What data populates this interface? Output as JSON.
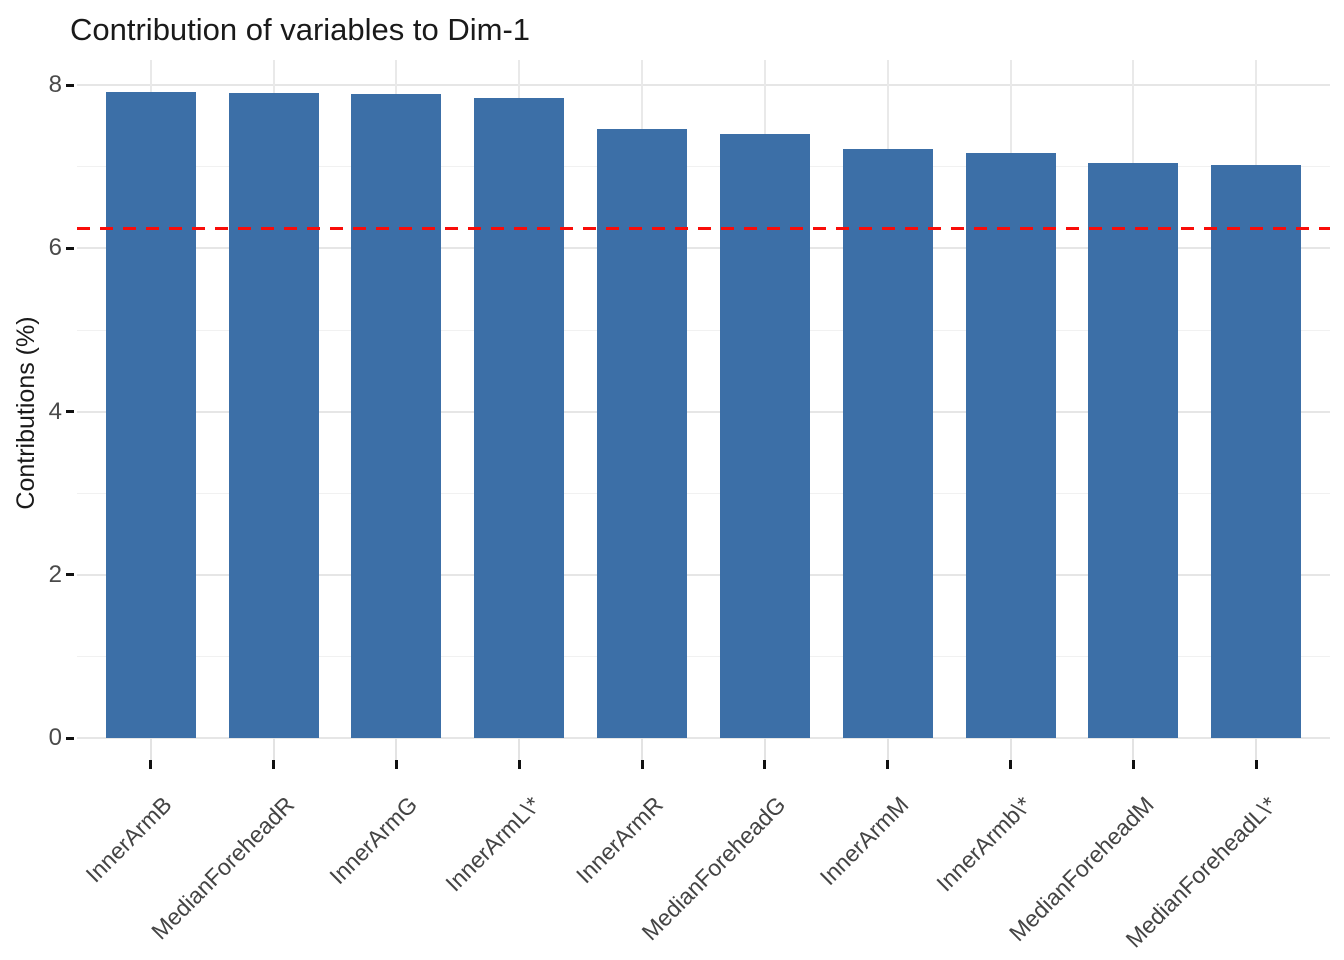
{
  "figure": {
    "title": "Contribution of variables to Dim-1"
  },
  "chart_data": {
    "type": "bar",
    "title": "Contribution of variables to Dim-1",
    "xlabel": "",
    "ylabel": "Contributions (%)",
    "categories": [
      "InnerArmB",
      "MedianForeheadR",
      "InnerArmG",
      "InnerArmL\\*",
      "InnerArmR",
      "MedianForeheadG",
      "InnerArmM",
      "InnerArmb\\*",
      "MedianForeheadM",
      "MedianForeheadL\\*"
    ],
    "values": [
      7.92,
      7.9,
      7.89,
      7.84,
      7.47,
      7.4,
      7.22,
      7.17,
      7.05,
      7.02
    ],
    "ylim": [
      0,
      8.31
    ],
    "yticks_major": [
      0,
      2,
      4,
      6,
      8
    ],
    "yticks_minor": [
      1,
      3,
      5,
      7
    ],
    "grid": true,
    "legend": false,
    "bar_color": "#3c6fa7",
    "reference_line": {
      "value": 6.25,
      "color": "#f90d09",
      "linetype": "dashed"
    }
  }
}
